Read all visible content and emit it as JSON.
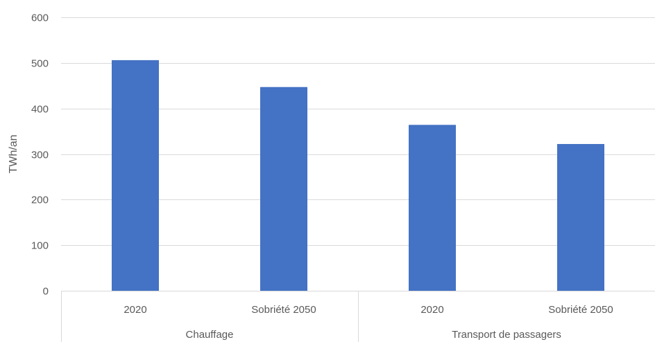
{
  "colors": {
    "bar": "#4472C4",
    "grid": "#D9D9D9",
    "text": "#595959",
    "background": "#FFFFFF"
  },
  "chart_data": {
    "type": "bar",
    "title": "",
    "xlabel": "",
    "ylabel": "TWh/an",
    "ylim": [
      0,
      600
    ],
    "yticks": [
      0,
      100,
      200,
      300,
      400,
      500,
      600
    ],
    "grid": true,
    "legend": "none",
    "groups": [
      {
        "label": "Chauffage",
        "categories": [
          "2020",
          "Sobriété 2050"
        ]
      },
      {
        "label": "Transport de passagers",
        "categories": [
          "2020",
          "Sobriété 2050"
        ]
      }
    ],
    "categories": [
      "2020",
      "Sobriété 2050",
      "2020",
      "Sobriété 2050"
    ],
    "values": [
      506,
      447,
      364,
      322
    ]
  }
}
